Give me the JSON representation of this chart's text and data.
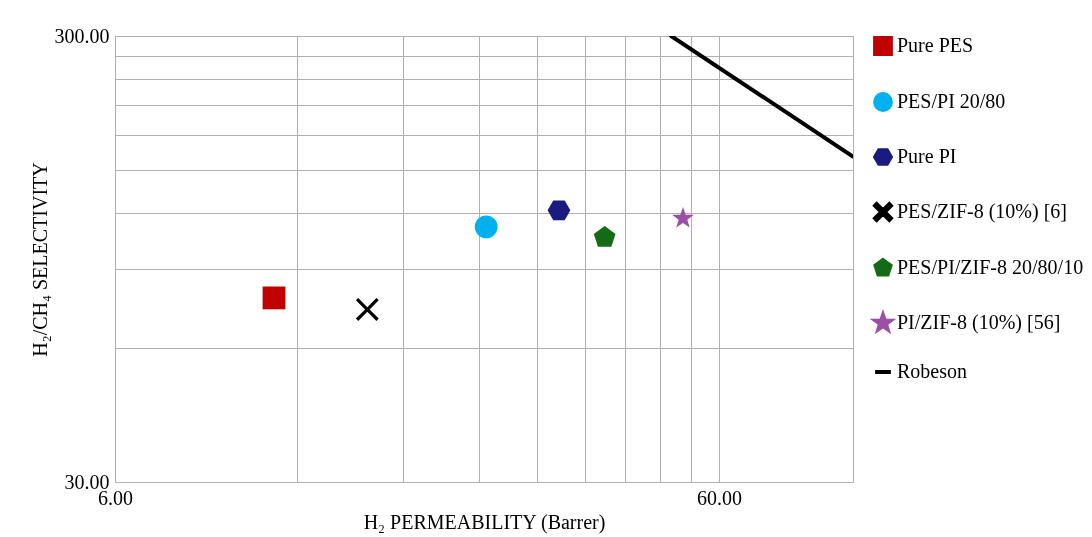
{
  "chart_data": {
    "type": "scatter",
    "xlabel": "H₂ PERMEABILITY (Barrer)",
    "ylabel": "H₂/CH₄ SELECTIVITY",
    "log": "xy",
    "grid": true,
    "legend": "right",
    "xlim": [
      6,
      100
    ],
    "xticks": [
      {
        "value": 6,
        "label": "6.00"
      },
      {
        "value": 12,
        "label": null
      },
      {
        "value": 18,
        "label": null
      },
      {
        "value": 24,
        "label": null
      },
      {
        "value": 30,
        "label": null
      },
      {
        "value": 36,
        "label": null
      },
      {
        "value": 42,
        "label": null
      },
      {
        "value": 48,
        "label": null
      },
      {
        "value": 54,
        "label": null
      },
      {
        "value": 60,
        "label": "60.00"
      }
    ],
    "ylim": [
      30,
      300
    ],
    "yticks": [
      {
        "value": 30,
        "label": "30.00"
      },
      {
        "value": 60,
        "label": null
      },
      {
        "value": 90,
        "label": null
      },
      {
        "value": 120,
        "label": null
      },
      {
        "value": 150,
        "label": null
      },
      {
        "value": 180,
        "label": null
      },
      {
        "value": 210,
        "label": null
      },
      {
        "value": 240,
        "label": null
      },
      {
        "value": 270,
        "label": null
      },
      {
        "value": 300,
        "label": "300.00"
      }
    ],
    "series": [
      {
        "name": "Pure PES",
        "color": "#c00000",
        "marker": "square",
        "x": [
          11.0
        ],
        "values": [
          77.6
        ]
      },
      {
        "name": "PES/PI 20/80",
        "color": "#00b0f0",
        "marker": "circle",
        "x": [
          24.7
        ],
        "values": [
          112
        ]
      },
      {
        "name": "Pure PI",
        "color": "#1a1a80",
        "x": [
          32.6
        ],
        "values": [
          122
        ]
      },
      {
        "name": "PES/ZIF-8 (10%) [6]",
        "color": "#000000",
        "marker": "cross",
        "x": [
          15.7
        ],
        "values": [
          73.1
        ]
      },
      {
        "name": "PES/PI/ZIF-8 20/80/10",
        "color": "#156b15",
        "x": [
          38.8
        ],
        "values": [
          106
        ]
      },
      {
        "name": "PI/ZIF-8 (10%) [56]",
        "color": "#9b4fa5",
        "marker": "star",
        "x": [
          52.3
        ],
        "values": [
          117
        ]
      },
      {
        "name": "Robeson",
        "type": "line",
        "color": "#000000",
        "marker": "none",
        "x": [
          50,
          100
        ],
        "values": [
          300,
          161
        ]
      }
    ]
  }
}
